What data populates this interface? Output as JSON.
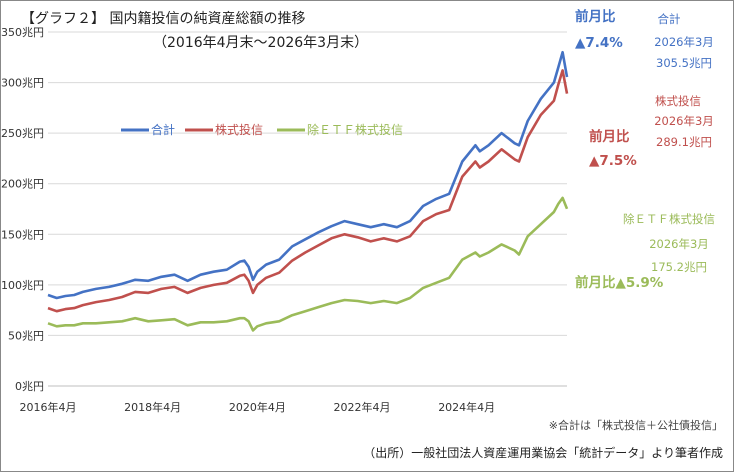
{
  "title": {
    "line1": "【グラフ２】 国内籍投信の純資産総額の推移",
    "line2": "（2016年4月末～2026年3月末）"
  },
  "colors": {
    "total": "#4472C4",
    "equity": "#C0504D",
    "ex_etf": "#9BBB59",
    "grid": "#D9D9D9",
    "axis": "#BFBFBF"
  },
  "legend": {
    "total": "合計",
    "equity": "株式投信",
    "ex_etf": "除ＥＴＦ株式投信"
  },
  "annotations": {
    "total": {
      "mom_label": "前月比",
      "mom_value": "▲7.4%",
      "name": "合計",
      "date": "2026年3月",
      "value": "305.5兆円"
    },
    "equity": {
      "name": "株式投信",
      "date": "2026年3月",
      "value": "289.1兆円",
      "mom_label": "前月比",
      "mom_value": "▲7.5%"
    },
    "ex_etf": {
      "name": "除ＥＴＦ株式投信",
      "date": "2026年3月",
      "value": "175.2兆円",
      "mom_text": "前月比▲5.9%"
    }
  },
  "note": "※合計は「株式投信＋公社債投信」",
  "source": "（出所）一般社団法人資産運用業協会「統計データ」より筆者作成",
  "chart_data": {
    "type": "line",
    "x_start": "2016-04",
    "x_end": "2026-03",
    "x_ticks": [
      "2016年4月",
      "2018年4月",
      "2020年4月",
      "2022年4月",
      "2024年4月"
    ],
    "y_ticks": [
      "0兆円",
      "50兆円",
      "100兆円",
      "150兆円",
      "200兆円",
      "250兆円",
      "300兆円",
      "350兆円"
    ],
    "ylim": [
      0,
      350
    ],
    "grid": true,
    "legend_position": "upper-left",
    "series": [
      {
        "name": "合計",
        "color_key": "total",
        "points": [
          [
            "2016-04",
            90
          ],
          [
            "2016-06",
            87
          ],
          [
            "2016-08",
            89
          ],
          [
            "2016-10",
            90
          ],
          [
            "2016-12",
            93
          ],
          [
            "2017-03",
            96
          ],
          [
            "2017-06",
            98
          ],
          [
            "2017-09",
            101
          ],
          [
            "2017-12",
            105
          ],
          [
            "2018-03",
            104
          ],
          [
            "2018-06",
            108
          ],
          [
            "2018-09",
            110
          ],
          [
            "2018-12",
            104
          ],
          [
            "2019-03",
            110
          ],
          [
            "2019-06",
            113
          ],
          [
            "2019-09",
            115
          ],
          [
            "2019-12",
            123
          ],
          [
            "2020-01",
            124
          ],
          [
            "2020-02",
            118
          ],
          [
            "2020-03",
            105
          ],
          [
            "2020-04",
            113
          ],
          [
            "2020-06",
            120
          ],
          [
            "2020-09",
            125
          ],
          [
            "2020-12",
            138
          ],
          [
            "2021-03",
            145
          ],
          [
            "2021-06",
            152
          ],
          [
            "2021-09",
            158
          ],
          [
            "2021-12",
            163
          ],
          [
            "2022-03",
            160
          ],
          [
            "2022-06",
            157
          ],
          [
            "2022-09",
            160
          ],
          [
            "2022-12",
            157
          ],
          [
            "2023-03",
            163
          ],
          [
            "2023-06",
            178
          ],
          [
            "2023-09",
            185
          ],
          [
            "2023-12",
            190
          ],
          [
            "2024-03",
            222
          ],
          [
            "2024-06",
            238
          ],
          [
            "2024-07",
            232
          ],
          [
            "2024-09",
            238
          ],
          [
            "2024-12",
            250
          ],
          [
            "2025-03",
            240
          ],
          [
            "2025-04",
            238
          ],
          [
            "2025-06",
            262
          ],
          [
            "2025-09",
            284
          ],
          [
            "2025-12",
            300
          ],
          [
            "2026-01",
            315
          ],
          [
            "2026-02",
            330
          ],
          [
            "2026-03",
            305.5
          ]
        ]
      },
      {
        "name": "株式投信",
        "color_key": "equity",
        "points": [
          [
            "2016-04",
            77
          ],
          [
            "2016-06",
            74
          ],
          [
            "2016-08",
            76
          ],
          [
            "2016-10",
            77
          ],
          [
            "2016-12",
            80
          ],
          [
            "2017-03",
            83
          ],
          [
            "2017-06",
            85
          ],
          [
            "2017-09",
            88
          ],
          [
            "2017-12",
            93
          ],
          [
            "2018-03",
            92
          ],
          [
            "2018-06",
            96
          ],
          [
            "2018-09",
            98
          ],
          [
            "2018-12",
            92
          ],
          [
            "2019-03",
            97
          ],
          [
            "2019-06",
            100
          ],
          [
            "2019-09",
            102
          ],
          [
            "2019-12",
            109
          ],
          [
            "2020-01",
            110
          ],
          [
            "2020-02",
            104
          ],
          [
            "2020-03",
            92
          ],
          [
            "2020-04",
            100
          ],
          [
            "2020-06",
            107
          ],
          [
            "2020-09",
            112
          ],
          [
            "2020-12",
            124
          ],
          [
            "2021-03",
            132
          ],
          [
            "2021-06",
            139
          ],
          [
            "2021-09",
            146
          ],
          [
            "2021-12",
            150
          ],
          [
            "2022-03",
            147
          ],
          [
            "2022-06",
            143
          ],
          [
            "2022-09",
            146
          ],
          [
            "2022-12",
            143
          ],
          [
            "2023-03",
            148
          ],
          [
            "2023-06",
            163
          ],
          [
            "2023-09",
            170
          ],
          [
            "2023-12",
            174
          ],
          [
            "2024-03",
            207
          ],
          [
            "2024-06",
            222
          ],
          [
            "2024-07",
            216
          ],
          [
            "2024-09",
            222
          ],
          [
            "2024-12",
            234
          ],
          [
            "2025-03",
            224
          ],
          [
            "2025-04",
            222
          ],
          [
            "2025-06",
            246
          ],
          [
            "2025-09",
            268
          ],
          [
            "2025-12",
            282
          ],
          [
            "2026-01",
            298
          ],
          [
            "2026-02",
            312
          ],
          [
            "2026-03",
            289.1
          ]
        ]
      },
      {
        "name": "除ＥＴＦ株式投信",
        "color_key": "ex_etf",
        "points": [
          [
            "2016-04",
            62
          ],
          [
            "2016-06",
            59
          ],
          [
            "2016-08",
            60
          ],
          [
            "2016-10",
            60
          ],
          [
            "2016-12",
            62
          ],
          [
            "2017-03",
            62
          ],
          [
            "2017-06",
            63
          ],
          [
            "2017-09",
            64
          ],
          [
            "2017-12",
            67
          ],
          [
            "2018-03",
            64
          ],
          [
            "2018-06",
            65
          ],
          [
            "2018-09",
            66
          ],
          [
            "2018-12",
            60
          ],
          [
            "2019-03",
            63
          ],
          [
            "2019-06",
            63
          ],
          [
            "2019-09",
            64
          ],
          [
            "2019-12",
            67
          ],
          [
            "2020-01",
            67
          ],
          [
            "2020-02",
            64
          ],
          [
            "2020-03",
            55
          ],
          [
            "2020-04",
            59
          ],
          [
            "2020-06",
            62
          ],
          [
            "2020-09",
            64
          ],
          [
            "2020-12",
            70
          ],
          [
            "2021-03",
            74
          ],
          [
            "2021-06",
            78
          ],
          [
            "2021-09",
            82
          ],
          [
            "2021-12",
            85
          ],
          [
            "2022-03",
            84
          ],
          [
            "2022-06",
            82
          ],
          [
            "2022-09",
            84
          ],
          [
            "2022-12",
            82
          ],
          [
            "2023-03",
            87
          ],
          [
            "2023-06",
            97
          ],
          [
            "2023-09",
            102
          ],
          [
            "2023-12",
            107
          ],
          [
            "2024-03",
            125
          ],
          [
            "2024-06",
            132
          ],
          [
            "2024-07",
            128
          ],
          [
            "2024-09",
            132
          ],
          [
            "2024-12",
            140
          ],
          [
            "2025-03",
            134
          ],
          [
            "2025-04",
            130
          ],
          [
            "2025-06",
            148
          ],
          [
            "2025-09",
            160
          ],
          [
            "2025-12",
            172
          ],
          [
            "2026-01",
            180
          ],
          [
            "2026-02",
            186
          ],
          [
            "2026-03",
            175.2
          ]
        ]
      }
    ]
  }
}
